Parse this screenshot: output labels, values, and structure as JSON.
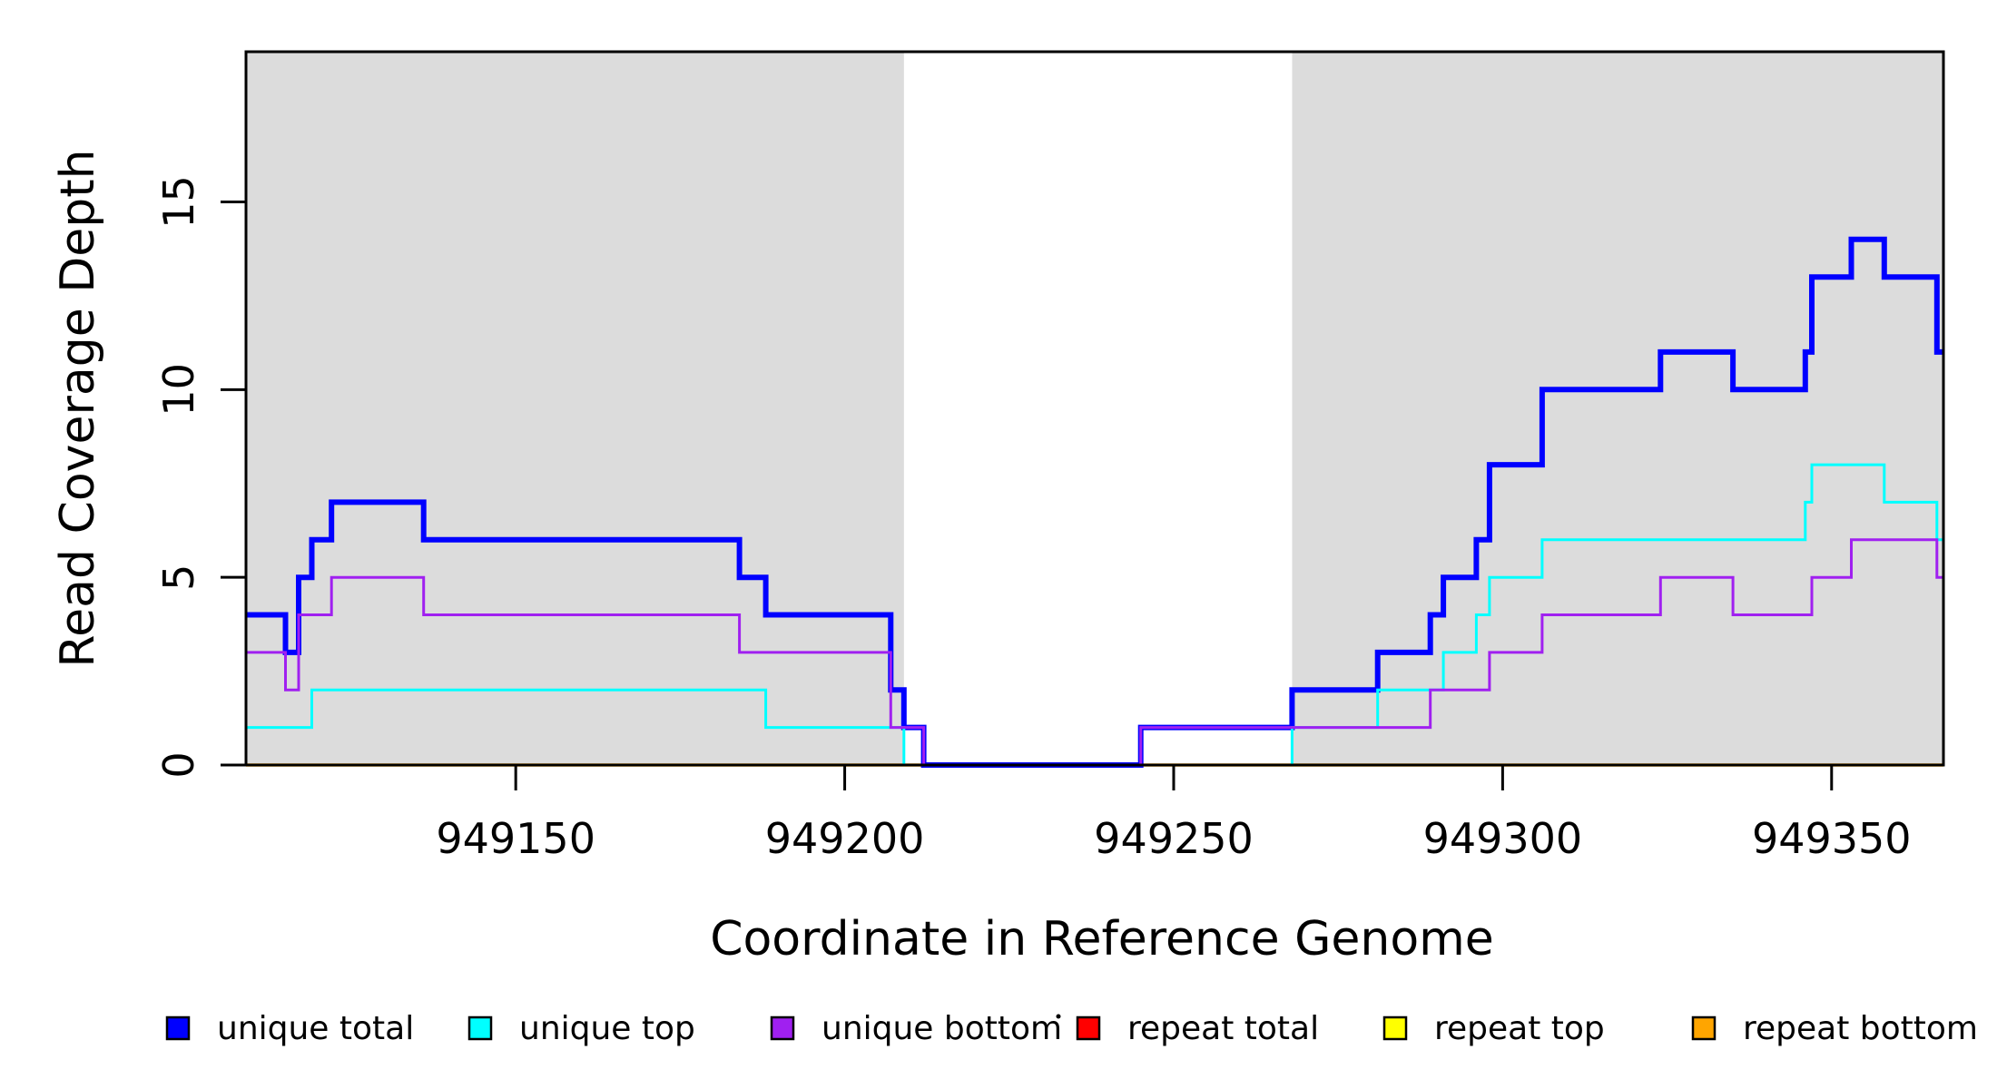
{
  "chart_data": {
    "type": "line",
    "subtype": "step-coverage-plot",
    "title": "",
    "xlabel": "Coordinate in Reference Genome",
    "ylabel": "Read Coverage Depth",
    "x_range": [
      949109,
      949367
    ],
    "y_range": [
      0,
      19
    ],
    "grid": false,
    "legend_position": "bottom",
    "x_ticks": [
      {
        "value": 949150,
        "label": "949150"
      },
      {
        "value": 949200,
        "label": "949200"
      },
      {
        "value": 949250,
        "label": "949250"
      },
      {
        "value": 949300,
        "label": "949300"
      },
      {
        "value": 949350,
        "label": "949350"
      }
    ],
    "y_ticks": [
      {
        "value": 0,
        "label": "0"
      },
      {
        "value": 5,
        "label": "5"
      },
      {
        "value": 10,
        "label": "10"
      },
      {
        "value": 15,
        "label": "15"
      }
    ],
    "shaded_regions": [
      {
        "x_start": 949109,
        "x_end": 949209,
        "color": "#DCDCDC"
      },
      {
        "x_start": 949268,
        "x_end": 949367,
        "color": "#DCDCDC"
      }
    ],
    "series": [
      {
        "name": "repeat total",
        "color": "#FF0000",
        "line_width": 3,
        "x_end": 949367,
        "steps": [
          [
            949109,
            0
          ]
        ]
      },
      {
        "name": "repeat top",
        "color": "#FFFF00",
        "line_width": 3,
        "x_end": 949367,
        "steps": [
          [
            949109,
            0
          ]
        ]
      },
      {
        "name": "repeat bottom",
        "color": "#FFA500",
        "line_width": 3.5,
        "x_end": 949367,
        "steps": [
          [
            949109,
            0
          ]
        ]
      },
      {
        "name": "unique total",
        "color": "#0000FF",
        "line_width": 6,
        "x_end": 949367,
        "steps": [
          [
            949109,
            4
          ],
          [
            949115,
            3
          ],
          [
            949117,
            5
          ],
          [
            949119,
            6
          ],
          [
            949122,
            7
          ],
          [
            949136,
            6
          ],
          [
            949184,
            5
          ],
          [
            949188,
            4
          ],
          [
            949207,
            2
          ],
          [
            949209,
            1
          ],
          [
            949212,
            0
          ],
          [
            949245,
            1
          ],
          [
            949268,
            2
          ],
          [
            949281,
            3
          ],
          [
            949289,
            4
          ],
          [
            949291,
            5
          ],
          [
            949296,
            6
          ],
          [
            949298,
            8
          ],
          [
            949306,
            10
          ],
          [
            949324,
            11
          ],
          [
            949335,
            10
          ],
          [
            949346,
            11
          ],
          [
            949347,
            13
          ],
          [
            949353,
            14
          ],
          [
            949358,
            13
          ],
          [
            949366,
            11
          ]
        ]
      },
      {
        "name": "unique top",
        "color": "#00FFFF",
        "line_width": 3,
        "x_end": 949367,
        "steps": [
          [
            949109,
            1
          ],
          [
            949119,
            2
          ],
          [
            949188,
            1
          ],
          [
            949209,
            0
          ],
          [
            949268,
            1
          ],
          [
            949281,
            2
          ],
          [
            949291,
            3
          ],
          [
            949296,
            4
          ],
          [
            949298,
            5
          ],
          [
            949306,
            6
          ],
          [
            949346,
            7
          ],
          [
            949347,
            8
          ],
          [
            949358,
            7
          ],
          [
            949366,
            6
          ]
        ]
      },
      {
        "name": "unique bottom",
        "color": "#A020F0",
        "line_width": 3,
        "x_end": 949367,
        "steps": [
          [
            949109,
            3
          ],
          [
            949115,
            2
          ],
          [
            949117,
            4
          ],
          [
            949122,
            5
          ],
          [
            949136,
            4
          ],
          [
            949184,
            3
          ],
          [
            949207,
            1
          ],
          [
            949212,
            0
          ],
          [
            949245,
            1
          ],
          [
            949289,
            2
          ],
          [
            949298,
            3
          ],
          [
            949306,
            4
          ],
          [
            949324,
            5
          ],
          [
            949335,
            4
          ],
          [
            949347,
            5
          ],
          [
            949353,
            6
          ],
          [
            949366,
            5
          ]
        ]
      }
    ],
    "legend": {
      "entries": [
        {
          "label": "unique total",
          "color": "#0000FF"
        },
        {
          "label": "unique top",
          "color": "#00FFFF"
        },
        {
          "label": "unique bottom",
          "color": "#A020F0"
        },
        {
          "label": "repeat total",
          "color": "#FF0000"
        },
        {
          "label": "repeat top",
          "color": "#FFFF00"
        },
        {
          "label": "repeat bottom",
          "color": "#FFA500"
        }
      ]
    }
  }
}
